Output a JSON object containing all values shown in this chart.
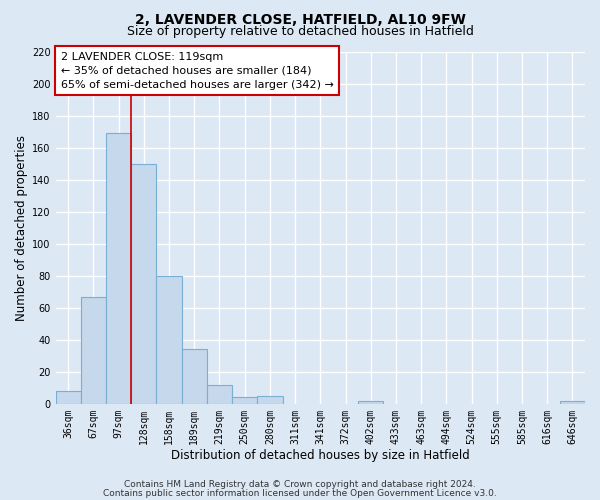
{
  "title": "2, LAVENDER CLOSE, HATFIELD, AL10 9FW",
  "subtitle": "Size of property relative to detached houses in Hatfield",
  "xlabel": "Distribution of detached houses by size in Hatfield",
  "ylabel": "Number of detached properties",
  "bar_labels": [
    "36sqm",
    "67sqm",
    "97sqm",
    "128sqm",
    "158sqm",
    "189sqm",
    "219sqm",
    "250sqm",
    "280sqm",
    "311sqm",
    "341sqm",
    "372sqm",
    "402sqm",
    "433sqm",
    "463sqm",
    "494sqm",
    "524sqm",
    "555sqm",
    "585sqm",
    "616sqm",
    "646sqm"
  ],
  "bar_values": [
    8,
    67,
    169,
    150,
    80,
    34,
    12,
    4,
    5,
    0,
    0,
    0,
    2,
    0,
    0,
    0,
    0,
    0,
    0,
    0,
    2
  ],
  "bar_color": "#c5d8ec",
  "bar_edge_color": "#7aafd4",
  "ylim": [
    0,
    220
  ],
  "yticks": [
    0,
    20,
    40,
    60,
    80,
    100,
    120,
    140,
    160,
    180,
    200,
    220
  ],
  "vline_color": "#cc0000",
  "vline_x_index": 2.5,
  "annotation_title": "2 LAVENDER CLOSE: 119sqm",
  "annotation_line1": "← 35% of detached houses are smaller (184)",
  "annotation_line2": "65% of semi-detached houses are larger (342) →",
  "footer1": "Contains HM Land Registry data © Crown copyright and database right 2024.",
  "footer2": "Contains public sector information licensed under the Open Government Licence v3.0.",
  "bg_color": "#dde8f5",
  "plot_bg_color": "#dde8f5",
  "grid_color": "#ffffff",
  "title_fontsize": 10,
  "subtitle_fontsize": 9,
  "axis_label_fontsize": 8.5,
  "tick_fontsize": 7,
  "annotation_fontsize": 8,
  "footer_fontsize": 6.5
}
